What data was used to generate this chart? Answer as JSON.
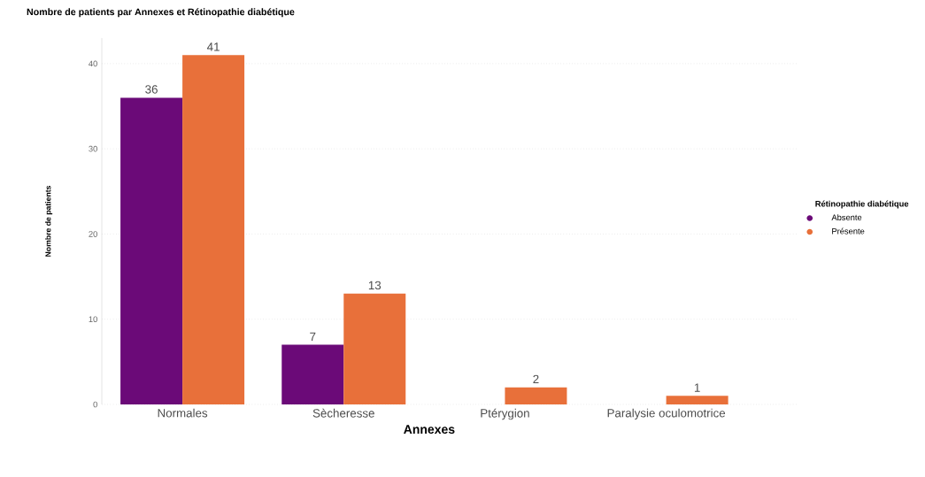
{
  "chart_data": {
    "type": "bar",
    "title": "Nombre de patients par Annexes et Rétinopathie diabétique",
    "xlabel": "Annexes",
    "ylabel": "Nombre de patients",
    "legend_title": "Rétinopathie diabétique",
    "categories": [
      "Normales",
      "Sècheresse",
      "Ptérygion",
      "Paralysie oculomotrice"
    ],
    "series": [
      {
        "name": "Absente",
        "color": "#6b0a78",
        "values": [
          36,
          7,
          null,
          null
        ]
      },
      {
        "name": "Présente",
        "color": "#e8703a",
        "values": [
          41,
          13,
          2,
          1
        ]
      }
    ],
    "ylim": [
      0,
      43
    ],
    "yticks": [
      0,
      10,
      20,
      30,
      40
    ],
    "grid": "y",
    "legend": "right",
    "data_labels": true
  }
}
